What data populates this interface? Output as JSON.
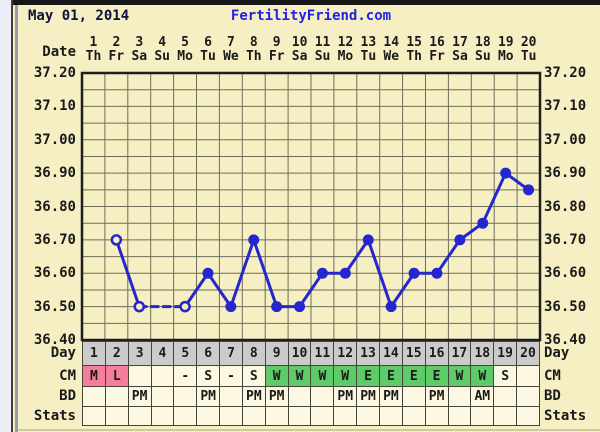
{
  "header": {
    "date": "May 01, 2014",
    "brand": "FertilityFriend.com"
  },
  "date_header": {
    "label": "Date",
    "numbers": [
      "1",
      "2",
      "3",
      "4",
      "5",
      "6",
      "7",
      "8",
      "9",
      "10",
      "11",
      "12",
      "13",
      "14",
      "15",
      "16",
      "17",
      "18",
      "19",
      "20"
    ],
    "weekdays": [
      "Th",
      "Fr",
      "Sa",
      "Su",
      "Mo",
      "Tu",
      "We",
      "Th",
      "Fr",
      "Sa",
      "Su",
      "Mo",
      "Tu",
      "We",
      "Th",
      "Fr",
      "Sa",
      "Su",
      "Mo",
      "Tu"
    ]
  },
  "y_axis": {
    "labels": [
      "37.20",
      "37.10",
      "37.00",
      "36.90",
      "36.80",
      "36.70",
      "36.60",
      "36.50",
      "36.40"
    ]
  },
  "chart_data": {
    "type": "line",
    "x": [
      1,
      2,
      3,
      4,
      5,
      6,
      7,
      8,
      9,
      10,
      11,
      12,
      13,
      14,
      15,
      16,
      17,
      18,
      19,
      20
    ],
    "series": [
      {
        "name": "temperature",
        "values": [
          null,
          36.7,
          36.5,
          null,
          36.5,
          36.6,
          36.5,
          36.7,
          36.5,
          36.5,
          36.6,
          36.6,
          36.7,
          36.5,
          36.6,
          36.6,
          36.7,
          36.75,
          36.9,
          36.85
        ]
      }
    ],
    "open_circle_days": [
      2,
      3,
      5
    ],
    "dashed_segments": [
      [
        3,
        5
      ]
    ],
    "ylim": [
      36.4,
      37.2
    ],
    "y_tick_step": 0.1,
    "y_grid_step": 0.05,
    "x_grid": true,
    "legend": "none",
    "line_color": "#2626CE"
  },
  "table": {
    "rows": [
      {
        "name": "day",
        "label": "Day",
        "bg": "gray",
        "values": [
          "1",
          "2",
          "3",
          "4",
          "5",
          "6",
          "7",
          "8",
          "9",
          "10",
          "11",
          "12",
          "13",
          "14",
          "15",
          "16",
          "17",
          "18",
          "19",
          "20"
        ],
        "cell_bgs": null
      },
      {
        "name": "cm",
        "label": "CM",
        "bg": "cream",
        "values": [
          "M",
          "L",
          "",
          "",
          "-",
          "S",
          "-",
          "S",
          "W",
          "W",
          "W",
          "W",
          "E",
          "E",
          "E",
          "E",
          "W",
          "W",
          "S",
          ""
        ],
        "cell_bgs": [
          "pink",
          "pink",
          "",
          "",
          "",
          "",
          "",
          "",
          "green",
          "green",
          "green",
          "green",
          "green",
          "green",
          "green",
          "green",
          "green",
          "green",
          "",
          ""
        ]
      },
      {
        "name": "bd",
        "label": "BD",
        "bg": "cream",
        "values": [
          "",
          "",
          "PM",
          "",
          "",
          "PM",
          "",
          "PM",
          "PM",
          "",
          "",
          "PM",
          "PM",
          "PM",
          "",
          "PM",
          "",
          "AM",
          "",
          ""
        ],
        "cell_bgs": null
      },
      {
        "name": "stats",
        "label": "Stats",
        "bg": "cream",
        "values": [
          "",
          "",
          "",
          "",
          "",
          "",
          "",
          "",
          "",
          "",
          "",
          "",
          "",
          "",
          "",
          "",
          "",
          "",
          "",
          ""
        ],
        "cell_bgs": null
      }
    ]
  },
  "colors": {
    "panel": "#F5EFC3",
    "cell_cream": "#FCF7E0",
    "day_gray": "#CBCBCB",
    "cm_pink": "#F57E9A",
    "cm_green": "#5CCB68",
    "line_blue": "#2626CE",
    "brand_blue": "#2121E8",
    "grid": "#6E6E58",
    "border_dark": "#44443A",
    "plot_border": "#1F1F1F"
  }
}
